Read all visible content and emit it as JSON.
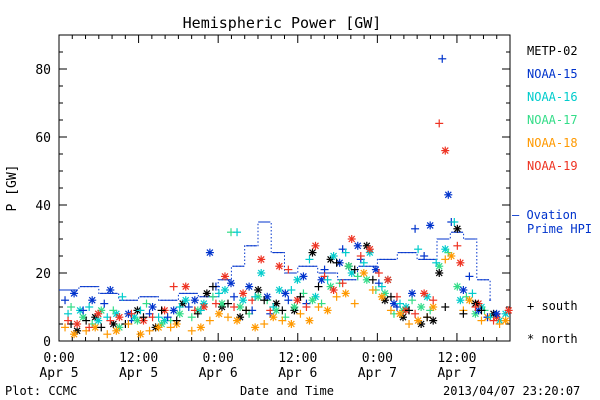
{
  "chart_data": {
    "type": "scatter",
    "title": "Hemispheric Power [GW]",
    "ylabel": "P [GW]",
    "xlabel": "Date and Time",
    "ylim": [
      0,
      90
    ],
    "y_ticks": [
      0,
      20,
      40,
      60,
      80
    ],
    "x_range": [
      "2013-04-05 00:00",
      "2013-04-07 20:00"
    ],
    "x_ticks": [
      {
        "t": "2013-04-05 00:00",
        "time": "0:00",
        "date": "Apr 5"
      },
      {
        "t": "2013-04-05 12:00",
        "time": "12:00",
        "date": "Apr 5"
      },
      {
        "t": "2013-04-06 00:00",
        "time": "0:00",
        "date": "Apr 6"
      },
      {
        "t": "2013-04-06 12:00",
        "time": "12:00",
        "date": "Apr 6"
      },
      {
        "t": "2013-04-07 00:00",
        "time": "0:00",
        "date": "Apr 7"
      },
      {
        "t": "2013-04-07 12:00",
        "time": "12:00",
        "date": "Apr 7"
      }
    ],
    "legend": {
      "placement": "right",
      "satellites": [
        {
          "name": "METP-02",
          "color": "#000000"
        },
        {
          "name": "NOAA-15",
          "color": "#0033cc"
        },
        {
          "name": "NOAA-16",
          "color": "#00cccc"
        },
        {
          "name": "NOAA-17",
          "color": "#33dd88"
        },
        {
          "name": "NOAA-18",
          "color": "#ff9900"
        },
        {
          "name": "NOAA-19",
          "color": "#ee3322"
        }
      ],
      "ovation_line1": "— Ovation",
      "ovation_line2": "Prime HPI",
      "ovation_color": "#0033cc",
      "south_label": "+ south",
      "north_label": "* north"
    },
    "ovation_prime_hpi": {
      "name": "Ovation Prime HPI",
      "x": [
        "2013-04-05 00:00",
        "2013-04-05 03:00",
        "2013-04-05 06:00",
        "2013-04-05 09:00",
        "2013-04-05 12:00",
        "2013-04-05 15:00",
        "2013-04-05 18:00",
        "2013-04-05 21:00",
        "2013-04-06 00:00",
        "2013-04-06 02:00",
        "2013-04-06 04:00",
        "2013-04-06 06:00",
        "2013-04-06 08:00",
        "2013-04-06 10:00",
        "2013-04-06 12:00",
        "2013-04-06 15:00",
        "2013-04-06 18:00",
        "2013-04-06 21:00",
        "2013-04-07 00:00",
        "2013-04-07 03:00",
        "2013-04-07 06:00",
        "2013-04-07 09:00",
        "2013-04-07 11:00",
        "2013-04-07 13:00",
        "2013-04-07 15:00",
        "2013-04-07 17:00"
      ],
      "y": [
        15,
        16,
        14,
        12,
        13,
        12,
        14,
        13,
        18,
        22,
        28,
        35,
        26,
        20,
        22,
        20,
        18,
        22,
        24,
        26,
        24,
        30,
        32,
        30,
        18,
        12
      ]
    },
    "series": [
      {
        "name": "METP-02",
        "color": "#000000",
        "south": [
          [
            4,
            5
          ],
          [
            9,
            6
          ],
          [
            14,
            4
          ],
          [
            22,
            5
          ],
          [
            28,
            7
          ],
          [
            34,
            9
          ],
          [
            39,
            6
          ],
          [
            46,
            8
          ],
          [
            51,
            16
          ],
          [
            56,
            11
          ],
          [
            62,
            9
          ],
          [
            68,
            12
          ],
          [
            74,
            9
          ],
          [
            80,
            13
          ],
          [
            86,
            16
          ],
          [
            92,
            23
          ],
          [
            98,
            21
          ],
          [
            104,
            18
          ],
          [
            110,
            13
          ],
          [
            116,
            9
          ],
          [
            122,
            7
          ],
          [
            128,
            10
          ],
          [
            134,
            8
          ],
          [
            140,
            9
          ]
        ],
        "north": [
          [
            6,
            3
          ],
          [
            12,
            7
          ],
          [
            18,
            5
          ],
          [
            26,
            9
          ],
          [
            32,
            4
          ],
          [
            41,
            11
          ],
          [
            49,
            14
          ],
          [
            54,
            10
          ],
          [
            60,
            7
          ],
          [
            66,
            15
          ],
          [
            72,
            11
          ],
          [
            78,
            9
          ],
          [
            84,
            26
          ],
          [
            90,
            24
          ],
          [
            96,
            22
          ],
          [
            102,
            28
          ],
          [
            108,
            12
          ],
          [
            114,
            7
          ],
          [
            120,
            5
          ],
          [
            124,
            6
          ],
          [
            126,
            20
          ],
          [
            132,
            33
          ],
          [
            138,
            11
          ],
          [
            144,
            8
          ]
        ]
      },
      {
        "name": "NOAA-15",
        "color": "#0033cc",
        "south": [
          [
            2,
            12
          ],
          [
            8,
            9
          ],
          [
            15,
            11
          ],
          [
            24,
            6
          ],
          [
            30,
            8
          ],
          [
            36,
            7
          ],
          [
            43,
            10
          ],
          [
            52,
            16
          ],
          [
            58,
            13
          ],
          [
            64,
            9
          ],
          [
            70,
            8
          ],
          [
            76,
            12
          ],
          [
            82,
            11
          ],
          [
            88,
            21
          ],
          [
            94,
            27
          ],
          [
            100,
            24
          ],
          [
            106,
            17
          ],
          [
            112,
            10
          ],
          [
            118,
            33
          ],
          [
            121,
            25
          ],
          [
            127,
            83
          ],
          [
            130,
            35
          ],
          [
            136,
            19
          ],
          [
            142,
            7
          ]
        ],
        "north": [
          [
            5,
            14
          ],
          [
            11,
            12
          ],
          [
            17,
            15
          ],
          [
            23,
            8
          ],
          [
            31,
            10
          ],
          [
            38,
            9
          ],
          [
            45,
            12
          ],
          [
            50,
            26
          ],
          [
            57,
            17
          ],
          [
            63,
            16
          ],
          [
            69,
            13
          ],
          [
            75,
            14
          ],
          [
            81,
            19
          ],
          [
            87,
            18
          ],
          [
            93,
            23
          ],
          [
            99,
            28
          ],
          [
            105,
            21
          ],
          [
            111,
            11
          ],
          [
            117,
            14
          ],
          [
            123,
            34
          ],
          [
            129,
            43
          ],
          [
            134,
            15
          ],
          [
            139,
            9
          ],
          [
            145,
            8
          ]
        ]
      },
      {
        "name": "NOAA-16",
        "color": "#00cccc",
        "south": [
          [
            3,
            8
          ],
          [
            10,
            10
          ],
          [
            16,
            7
          ],
          [
            21,
            13
          ],
          [
            27,
            9
          ],
          [
            33,
            7
          ],
          [
            40,
            10
          ],
          [
            47,
            9
          ],
          [
            53,
            14
          ],
          [
            59,
            32
          ],
          [
            65,
            13
          ],
          [
            71,
            10
          ],
          [
            77,
            15
          ],
          [
            83,
            24
          ],
          [
            89,
            18
          ],
          [
            95,
            26
          ],
          [
            101,
            23
          ],
          [
            107,
            16
          ],
          [
            113,
            11
          ],
          [
            119,
            27
          ],
          [
            125,
            23
          ],
          [
            131,
            35
          ],
          [
            137,
            14
          ],
          [
            143,
            7
          ]
        ],
        "north": [
          [
            7,
            9
          ],
          [
            13,
            6
          ],
          [
            19,
            8
          ],
          [
            25,
            7
          ],
          [
            35,
            6
          ],
          [
            42,
            12
          ],
          [
            48,
            11
          ],
          [
            55,
            15
          ],
          [
            61,
            12
          ],
          [
            67,
            20
          ],
          [
            73,
            15
          ],
          [
            79,
            18
          ],
          [
            85,
            13
          ],
          [
            91,
            25
          ],
          [
            97,
            20
          ],
          [
            103,
            26
          ],
          [
            109,
            18
          ],
          [
            115,
            10
          ],
          [
            122,
            13
          ],
          [
            128,
            27
          ],
          [
            133,
            12
          ],
          [
            140,
            10
          ],
          [
            146,
            6
          ],
          [
            148,
            8
          ]
        ]
      },
      {
        "name": "NOAA-17",
        "color": "#33dd88",
        "south": [
          [
            4,
            10
          ],
          [
            11,
            5
          ],
          [
            18,
            9
          ],
          [
            29,
            11
          ],
          [
            37,
            6
          ],
          [
            44,
            7
          ],
          [
            51,
            13
          ],
          [
            57,
            32
          ],
          [
            63,
            8
          ],
          [
            69,
            12
          ],
          [
            75,
            7
          ],
          [
            81,
            14
          ],
          [
            87,
            11
          ],
          [
            93,
            17
          ],
          [
            99,
            19
          ],
          [
            105,
            15
          ],
          [
            111,
            8
          ],
          [
            117,
            12
          ],
          [
            123,
            9
          ],
          [
            129,
            26
          ],
          [
            135,
            13
          ],
          [
            141,
            9
          ]
        ],
        "north": [
          [
            8,
            7
          ],
          [
            14,
            9
          ],
          [
            20,
            4
          ],
          [
            26,
            6
          ],
          [
            34,
            5
          ],
          [
            40,
            8
          ],
          [
            46,
            9
          ],
          [
            54,
            11
          ],
          [
            60,
            10
          ],
          [
            66,
            13
          ],
          [
            72,
            9
          ],
          [
            78,
            10
          ],
          [
            84,
            12
          ],
          [
            90,
            16
          ],
          [
            96,
            22
          ],
          [
            102,
            18
          ],
          [
            108,
            14
          ],
          [
            114,
            9
          ],
          [
            120,
            10
          ],
          [
            126,
            22
          ],
          [
            132,
            16
          ],
          [
            138,
            8
          ]
        ]
      },
      {
        "name": "NOAA-18",
        "color": "#ff9900",
        "south": [
          [
            2,
            4
          ],
          [
            9,
            3
          ],
          [
            16,
            2
          ],
          [
            23,
            5
          ],
          [
            30,
            3
          ],
          [
            37,
            4
          ],
          [
            44,
            3
          ],
          [
            50,
            6
          ],
          [
            56,
            7
          ],
          [
            62,
            9
          ],
          [
            68,
            5
          ],
          [
            74,
            6
          ],
          [
            80,
            8
          ],
          [
            86,
            10
          ],
          [
            92,
            13
          ],
          [
            98,
            11
          ],
          [
            104,
            15
          ],
          [
            110,
            9
          ],
          [
            116,
            5
          ],
          [
            122,
            7
          ],
          [
            128,
            24
          ],
          [
            134,
            9
          ],
          [
            140,
            6
          ],
          [
            146,
            5
          ]
        ],
        "north": [
          [
            5,
            2
          ],
          [
            12,
            4
          ],
          [
            19,
            3
          ],
          [
            27,
            2
          ],
          [
            33,
            4
          ],
          [
            39,
            5
          ],
          [
            47,
            4
          ],
          [
            53,
            8
          ],
          [
            59,
            6
          ],
          [
            65,
            4
          ],
          [
            71,
            7
          ],
          [
            77,
            5
          ],
          [
            83,
            6
          ],
          [
            89,
            9
          ],
          [
            95,
            14
          ],
          [
            101,
            20
          ],
          [
            107,
            13
          ],
          [
            113,
            8
          ],
          [
            119,
            6
          ],
          [
            124,
            10
          ],
          [
            130,
            25
          ],
          [
            136,
            12
          ],
          [
            142,
            7
          ],
          [
            148,
            6
          ]
        ]
      },
      {
        "name": "NOAA-19",
        "color": "#ee3322",
        "south": [
          [
            3,
            6
          ],
          [
            10,
            4
          ],
          [
            17,
            6
          ],
          [
            24,
            8
          ],
          [
            31,
            7
          ],
          [
            38,
            16
          ],
          [
            45,
            9
          ],
          [
            52,
            11
          ],
          [
            58,
            10
          ],
          [
            64,
            12
          ],
          [
            70,
            9
          ],
          [
            76,
            21
          ],
          [
            82,
            10
          ],
          [
            88,
            19
          ],
          [
            94,
            17
          ],
          [
            100,
            25
          ],
          [
            106,
            20
          ],
          [
            112,
            13
          ],
          [
            118,
            8
          ],
          [
            124,
            12
          ],
          [
            126,
            64
          ],
          [
            132,
            28
          ],
          [
            138,
            10
          ],
          [
            144,
            6
          ]
        ],
        "north": [
          [
            6,
            5
          ],
          [
            13,
            8
          ],
          [
            20,
            7
          ],
          [
            28,
            6
          ],
          [
            35,
            9
          ],
          [
            42,
            16
          ],
          [
            48,
            10
          ],
          [
            55,
            19
          ],
          [
            61,
            14
          ],
          [
            67,
            24
          ],
          [
            73,
            22
          ],
          [
            79,
            12
          ],
          [
            85,
            28
          ],
          [
            91,
            15
          ],
          [
            97,
            30
          ],
          [
            103,
            27
          ],
          [
            109,
            18
          ],
          [
            115,
            9
          ],
          [
            121,
            14
          ],
          [
            128,
            56
          ],
          [
            133,
            23
          ],
          [
            139,
            11
          ],
          [
            145,
            7
          ],
          [
            149,
            9
          ]
        ]
      }
    ]
  },
  "footer": {
    "plot_credit": "Plot: CCMC",
    "timestamp": "2013/04/07 23:20:07"
  }
}
